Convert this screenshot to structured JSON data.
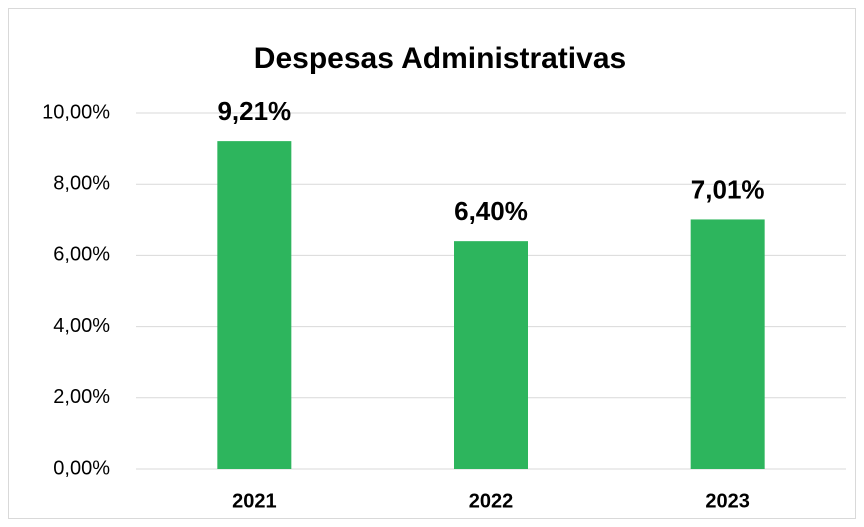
{
  "chart_data": {
    "type": "bar",
    "title": "Despesas Administrativas",
    "categories": [
      "2021",
      "2022",
      "2023"
    ],
    "values": [
      9.21,
      6.4,
      7.01
    ],
    "value_labels": [
      "9,21%",
      "6,40%",
      "7,01%"
    ],
    "color": "#2db55d",
    "ylim": [
      0,
      10
    ],
    "yticks": [
      {
        "value": 0,
        "label": "0,00%"
      },
      {
        "value": 2,
        "label": "2,00%"
      },
      {
        "value": 4,
        "label": "4,00%"
      },
      {
        "value": 6,
        "label": "6,00%"
      },
      {
        "value": 8,
        "label": "8,00%"
      },
      {
        "value": 10,
        "label": "10,00%"
      }
    ],
    "grid": true
  }
}
